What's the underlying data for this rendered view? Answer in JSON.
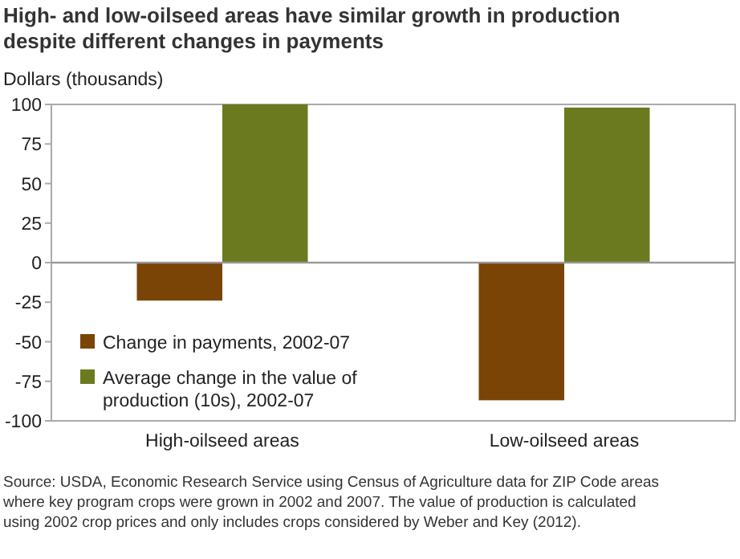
{
  "chart_data": {
    "type": "bar",
    "title": "High- and low-oilseed areas have similar growth in production despite different changes in payments",
    "ylabel": "Dollars (thousands)",
    "categories": [
      "High-oilseed areas",
      "Low-oilseed areas"
    ],
    "series": [
      {
        "name": "Change in payments, 2002-07",
        "color": "#7a4406",
        "values": [
          -24,
          -87
        ]
      },
      {
        "name": "Average change in the value of production (10s), 2002-07",
        "color": "#6b7a1e",
        "values": [
          100,
          98
        ]
      }
    ],
    "ylim": [
      -100,
      100
    ],
    "yticks": [
      -100,
      -75,
      -50,
      -25,
      0,
      25,
      50,
      75,
      100
    ],
    "grid": false,
    "legend": "bottom left",
    "annotations": [
      "Source: USDA, Economic Research Service using Census of Agriculture data for ZIP Code areas where key program crops were grown in 2002 and 2007. The value of production is calculated using 2002 crop prices and only includes crops considered by Weber and Key (2012)."
    ]
  }
}
